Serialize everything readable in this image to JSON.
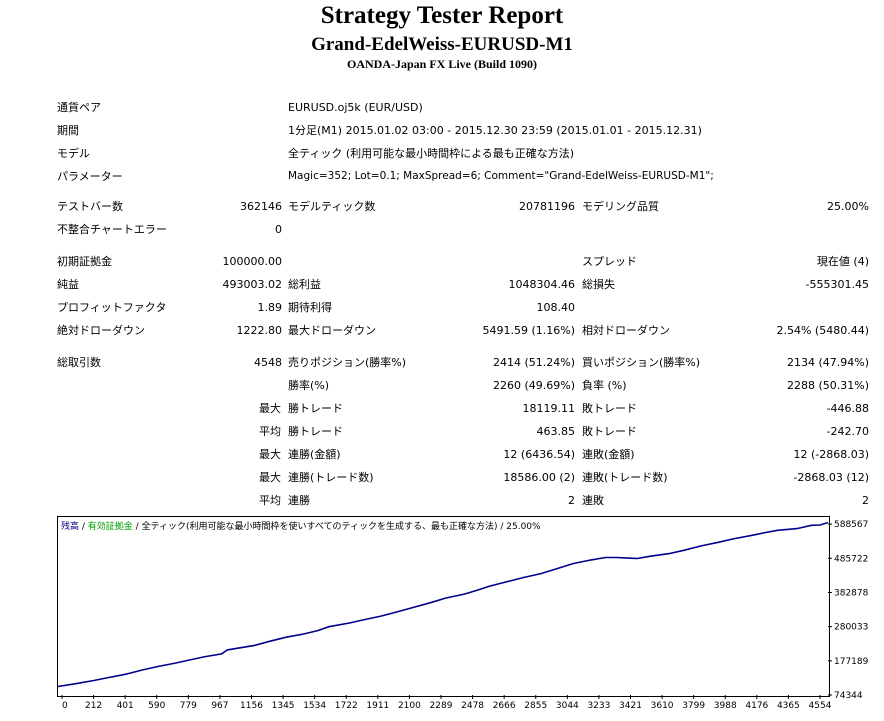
{
  "header": {
    "title": "Strategy Tester Report",
    "ea_name": "Grand-EdelWeiss-EURUSD-M1",
    "server": "OANDA-Japan FX Live (Build 1090)"
  },
  "info": [
    {
      "label": "通貨ペア",
      "value": "EURUSD.oj5k (EUR/USD)"
    },
    {
      "label": "期間",
      "value": "1分足(M1) 2015.01.02 03:00 - 2015.12.30 23:59 (2015.01.01 - 2015.12.31)"
    },
    {
      "label": "モデル",
      "value": "全ティック (利用可能な最小時間枠による最も正確な方法)"
    },
    {
      "label": "パラメーター",
      "value": "Magic=352; Lot=0.1; MaxSpread=6; Comment=\"Grand-EdelWeiss-EURUSD-M1\";"
    }
  ],
  "stats": {
    "bars_label": "テストバー数",
    "bars": "362146",
    "ticks_label": "モデルティック数",
    "ticks": "20781196",
    "quality_label": "モデリング品質",
    "quality": "25.00%",
    "errors_label": "不整合チャートエラー",
    "errors": "0",
    "deposit_label": "初期証拠金",
    "deposit": "100000.00",
    "spread_label": "スプレッド",
    "spread": "現在値 (4)",
    "net_label": "純益",
    "net": "493003.02",
    "gross_profit_label": "総利益",
    "gross_profit": "1048304.46",
    "gross_loss_label": "総損失",
    "gross_loss": "-555301.45",
    "pf_label": "プロフィットファクタ",
    "pf": "1.89",
    "payoff_label": "期待利得",
    "payoff": "108.40",
    "abs_dd_label": "絶対ドローダウン",
    "abs_dd": "1222.80",
    "max_dd_label": "最大ドローダウン",
    "max_dd": "5491.59 (1.16%)",
    "rel_dd_label": "相対ドローダウン",
    "rel_dd": "2.54% (5480.44)",
    "trades_label": "総取引数",
    "trades": "4548",
    "short_label": "売りポジション(勝率%)",
    "short": "2414 (51.24%)",
    "long_label": "買いポジション(勝率%)",
    "long": "2134 (47.94%)",
    "win_label": "勝率(%)",
    "win": "2260 (49.69%)",
    "loss_label": "負率 (%)",
    "loss": "2288 (50.31%)",
    "max_label": "最大",
    "avg_label": "平均",
    "largest_win_label": "勝トレード",
    "largest_win": "18119.11",
    "largest_loss_label": "敗トレード",
    "largest_loss": "-446.88",
    "avg_win_label": "勝トレード",
    "avg_win": "463.85",
    "avg_loss_label": "敗トレード",
    "avg_loss": "-242.70",
    "cons_wins_money_label": "連勝(金額)",
    "cons_wins_money": "12 (6436.54)",
    "cons_losses_money_label": "連敗(金額)",
    "cons_losses_money": "12 (-2868.03)",
    "cons_profit_label": "連勝(トレード数)",
    "cons_profit": "18586.00 (2)",
    "cons_loss_label": "連敗(トレード数)",
    "cons_loss": "-2868.03 (12)",
    "avg_cons_wins_label": "連勝",
    "avg_cons_wins": "2",
    "avg_cons_losses_label": "連敗",
    "avg_cons_losses": "2"
  },
  "chart_legend": {
    "balance": "残高",
    "sep": " / ",
    "equity": "有効証拠金",
    "model": " / 全ティック(利用可能な最小時間枠を使いすべてのティックを生成する、最も正確な方法) / 25.00%"
  },
  "chart_data": {
    "type": "line",
    "line_color": "#00008b",
    "x_ticks": [
      "0",
      "212",
      "401",
      "590",
      "779",
      "967",
      "1156",
      "1345",
      "1534",
      "1722",
      "1911",
      "2100",
      "2289",
      "2478",
      "2666",
      "2855",
      "3044",
      "3233",
      "3421",
      "3610",
      "3799",
      "3988",
      "4176",
      "4365",
      "4554"
    ],
    "y_ticks": [
      "588567",
      "485722",
      "382878",
      "280033",
      "177189",
      "74344"
    ],
    "y_tick_values": [
      588567,
      485722,
      382878,
      280033,
      177189,
      74344
    ],
    "xlim": [
      0,
      4548
    ],
    "ylim": [
      74344,
      610000
    ],
    "series": [
      {
        "x": [
          0,
          100,
          212,
          300,
          401,
          500,
          590,
          700,
          779,
          870,
          967,
          1000,
          1156,
          1250,
          1345,
          1450,
          1534,
          1600,
          1722,
          1800,
          1911,
          2000,
          2100,
          2200,
          2289,
          2400,
          2478,
          2550,
          2666,
          2750,
          2855,
          2950,
          3044,
          3150,
          3233,
          3300,
          3350,
          3421,
          3500,
          3610,
          3700,
          3799,
          3900,
          3988,
          4100,
          4176,
          4250,
          4365,
          4450,
          4500,
          4548
        ],
        "y": [
          100000,
          108000,
          118000,
          127000,
          137000,
          150000,
          160000,
          171000,
          180000,
          190000,
          198000,
          210000,
          223000,
          236000,
          248000,
          258000,
          268000,
          280000,
          291000,
          300000,
          312000,
          324000,
          338000,
          352000,
          366000,
          378000,
          390000,
          402000,
          417000,
          428000,
          440000,
          455000,
          470000,
          481000,
          488000,
          488000,
          487000,
          485000,
          492000,
          500000,
          510000,
          523000,
          534000,
          544000,
          555000,
          563000,
          570000,
          575000,
          585000,
          586000,
          593000
        ]
      }
    ]
  }
}
